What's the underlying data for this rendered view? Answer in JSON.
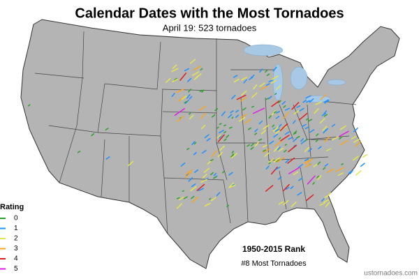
{
  "header": {
    "title": "Calendar Dates with the Most Tornadoes",
    "subtitle": "April 19: 523 tornadoes"
  },
  "legend": {
    "title": "Rating",
    "items": [
      {
        "label": "0",
        "color": "#2ca02c"
      },
      {
        "label": "1",
        "color": "#1e90ff"
      },
      {
        "label": "2",
        "color": "#e6e64c"
      },
      {
        "label": "3",
        "color": "#f5a623"
      },
      {
        "label": "4",
        "color": "#e01e1e"
      },
      {
        "label": "5",
        "color": "#e020e0"
      }
    ]
  },
  "rank": {
    "title": "1950-2015 Rank",
    "text": "#8 Most Tornadoes"
  },
  "credit": "ustornadoes.com"
}
